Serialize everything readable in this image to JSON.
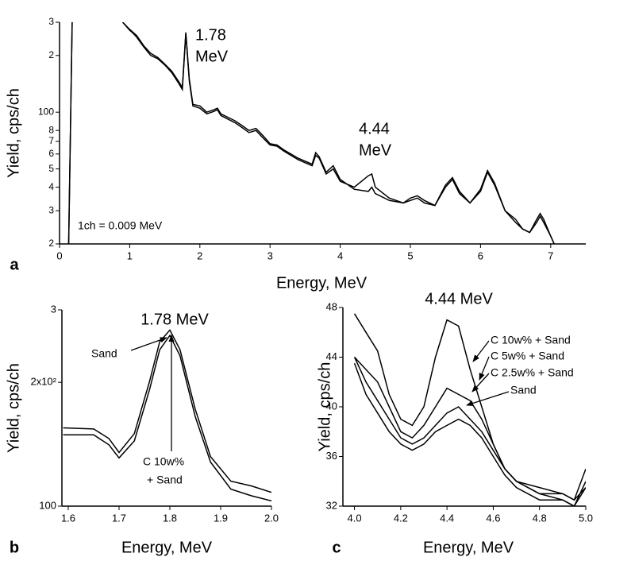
{
  "chart_data": [
    {
      "type": "line",
      "panel_label": "a",
      "xlabel": "Energy, MeV",
      "ylabel": "Yield, cps/ch",
      "log_y": true,
      "annotations": [
        [
          "1.78",
          "MeV"
        ],
        [
          "4.44",
          "MeV"
        ],
        [
          "1ch = 0.009 MeV"
        ]
      ],
      "xlim": [
        0,
        7.5
      ],
      "xticks": [
        0,
        1,
        2,
        3,
        4,
        5,
        6,
        7
      ],
      "ylim": [
        20,
        300
      ],
      "yticks": [
        {
          "value": 300,
          "label": "3"
        },
        {
          "value": 200,
          "label": "2"
        },
        100,
        {
          "value": 80,
          "label": "8"
        },
        {
          "value": 70,
          "label": "7"
        },
        {
          "value": 60,
          "label": "6"
        },
        {
          "value": 50,
          "label": "5"
        },
        {
          "value": 40,
          "label": "4"
        },
        {
          "value": 30,
          "label": "3"
        },
        {
          "value": 20,
          "label": "2"
        }
      ],
      "x": [
        0.13,
        0.18,
        0.5,
        0.9,
        1.0,
        1.05,
        1.1,
        1.2,
        1.3,
        1.4,
        1.5,
        1.6,
        1.7,
        1.75,
        1.8,
        1.85,
        1.9,
        2.0,
        2.1,
        2.2,
        2.25,
        2.3,
        2.5,
        2.6,
        2.7,
        2.8,
        2.9,
        3.0,
        3.1,
        3.2,
        3.4,
        3.6,
        3.65,
        3.7,
        3.8,
        3.9,
        4.0,
        4.2,
        4.4,
        4.45,
        4.5,
        4.7,
        4.9,
        5.0,
        5.1,
        5.2,
        5.35,
        5.5,
        5.6,
        5.7,
        5.85,
        6.0,
        6.1,
        6.2,
        6.35,
        6.5,
        6.6,
        6.7,
        6.8,
        6.85,
        6.9,
        7.0,
        7.05
      ],
      "series": [
        {
          "color": "#000000",
          "values": [
            20,
            300,
            null,
            300,
            275,
            265,
            255,
            225,
            205,
            195,
            180,
            165,
            145,
            135,
            265,
            150,
            110,
            108,
            100,
            103,
            105,
            98,
            90,
            85,
            80,
            82,
            75,
            68,
            67,
            63,
            57,
            53,
            61,
            58,
            48,
            52,
            44,
            39,
            38,
            40,
            37,
            34,
            33,
            35,
            36,
            34,
            32,
            41,
            45,
            38,
            33,
            39,
            49,
            42,
            30,
            27,
            24,
            23,
            27,
            29,
            27,
            22,
            20
          ]
        },
        {
          "color": "#000000",
          "values": [
            20,
            300,
            null,
            300,
            272,
            262,
            250,
            222,
            200,
            192,
            178,
            162,
            142,
            132,
            260,
            146,
            108,
            105,
            98,
            101,
            103,
            96,
            88,
            83,
            78,
            80,
            73,
            67,
            66,
            62,
            56,
            52,
            59,
            57,
            47,
            50,
            43,
            40,
            46,
            47,
            40,
            35,
            33,
            34,
            35,
            33,
            32,
            40,
            44,
            37,
            33,
            38,
            48,
            41,
            30,
            26,
            24,
            23,
            26,
            28,
            26,
            22,
            20
          ]
        }
      ]
    },
    {
      "type": "line",
      "panel_label": "b",
      "title": "1.78 MeV",
      "xlabel": "Energy, MeV",
      "ylabel": "Yield, cps/ch",
      "log_y": true,
      "annotations": [
        [
          "Sand"
        ],
        [
          "C 10w%",
          "+ Sand"
        ]
      ],
      "xlim": [
        1.5875,
        2.0
      ],
      "xticks": [
        1.6,
        1.7,
        1.8,
        1.9,
        {
          "value": 2,
          "label": "2.0"
        }
      ],
      "ylim": [
        100,
        300
      ],
      "yticks": [
        {
          "value": 300,
          "label": "3"
        },
        {
          "value": 200,
          "label": "2x10²"
        },
        100
      ],
      "x": [
        1.59,
        1.65,
        1.68,
        1.7,
        1.73,
        1.76,
        1.78,
        1.8,
        1.82,
        1.85,
        1.88,
        1.92,
        1.96,
        2.0
      ],
      "series": [
        {
          "color": "#000000",
          "values": [
            155,
            154,
            146,
            135,
            150,
            201,
            251,
            268,
            240,
            172,
            132,
            115,
            112,
            108
          ]
        },
        {
          "color": "#000000",
          "values": [
            149,
            149,
            141,
            131,
            144,
            192,
            240,
            260,
            232,
            165,
            128,
            110,
            106,
            103
          ]
        }
      ]
    },
    {
      "type": "line",
      "panel_label": "c",
      "title": "4.44 MeV",
      "xlabel": "Energy, MeV",
      "ylabel": "Yield, cps/ch",
      "log_y": false,
      "xlim": [
        3.95,
        5.0
      ],
      "xticks": [
        {
          "value": 4,
          "label": "4.0"
        },
        4.2,
        4.4,
        4.6,
        4.8,
        {
          "value": 5,
          "label": "5.0"
        }
      ],
      "ylim": [
        32,
        48
      ],
      "yticks": [
        32,
        36,
        40,
        44,
        48
      ],
      "x": [
        4.0,
        4.05,
        4.1,
        4.15,
        4.2,
        4.25,
        4.3,
        4.35,
        4.4,
        4.45,
        4.5,
        4.55,
        4.6,
        4.65,
        4.7,
        4.8,
        4.9,
        4.95,
        5.0
      ],
      "series": [
        {
          "name": "C 10w% + Sand",
          "color": "#000000",
          "values": [
            47.5,
            46,
            44.5,
            41,
            39,
            38.5,
            40,
            44,
            47,
            46.5,
            43,
            40,
            37,
            35,
            34,
            33,
            33,
            32.5,
            35
          ]
        },
        {
          "name": "C 5w% + Sand",
          "color": "#000000",
          "values": [
            44,
            43,
            42,
            40,
            38,
            37.5,
            38.5,
            40,
            41.5,
            41,
            40.5,
            39,
            37,
            35,
            34,
            33.5,
            33,
            32.5,
            33.5
          ]
        },
        {
          "name": "C 2.5w% + Sand",
          "color": "#000000",
          "values": [
            44,
            42,
            40.5,
            39,
            37.5,
            37,
            37.5,
            38.5,
            39.5,
            40,
            39,
            38,
            36.5,
            35,
            34,
            33,
            32.5,
            32,
            34
          ]
        },
        {
          "name": "Sand",
          "color": "#000000",
          "values": [
            43.5,
            41,
            39.5,
            38,
            37,
            36.5,
            37,
            38,
            38.5,
            39,
            38.5,
            37.5,
            36,
            34.5,
            33.5,
            32.5,
            32.5,
            32,
            33.5
          ]
        }
      ]
    }
  ]
}
